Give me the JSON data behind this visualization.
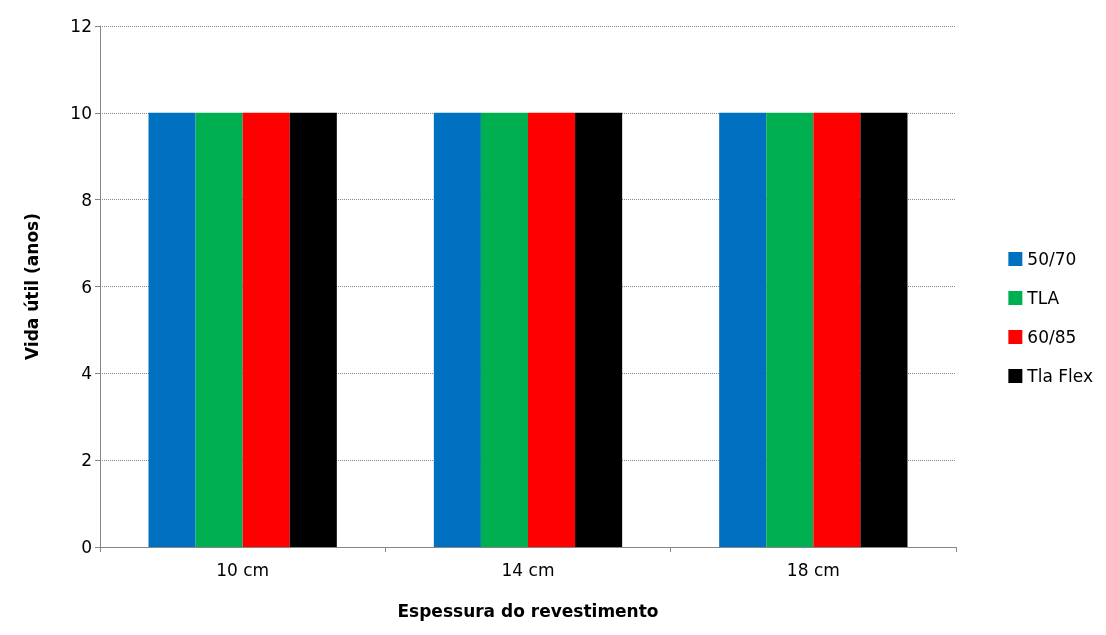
{
  "chart_data": {
    "type": "bar",
    "xlabel": "Espessura do revestimento",
    "ylabel": "Vida útil (anos)",
    "categories": [
      "10 cm",
      "14 cm",
      "18 cm"
    ],
    "series": [
      {
        "name": "50/70",
        "color": "#0070c0",
        "values": [
          10,
          10,
          10
        ]
      },
      {
        "name": "TLA",
        "color": "#00b050",
        "values": [
          10,
          10,
          10
        ]
      },
      {
        "name": "60/85",
        "color": "#ff0000",
        "values": [
          10,
          10,
          10
        ]
      },
      {
        "name": "Tla Flex",
        "color": "#000000",
        "values": [
          10,
          10,
          10
        ]
      }
    ],
    "ylim": [
      0,
      12
    ],
    "yticks": [
      0,
      2,
      4,
      6,
      8,
      10,
      12
    ],
    "grid": "y",
    "legend": "right"
  }
}
